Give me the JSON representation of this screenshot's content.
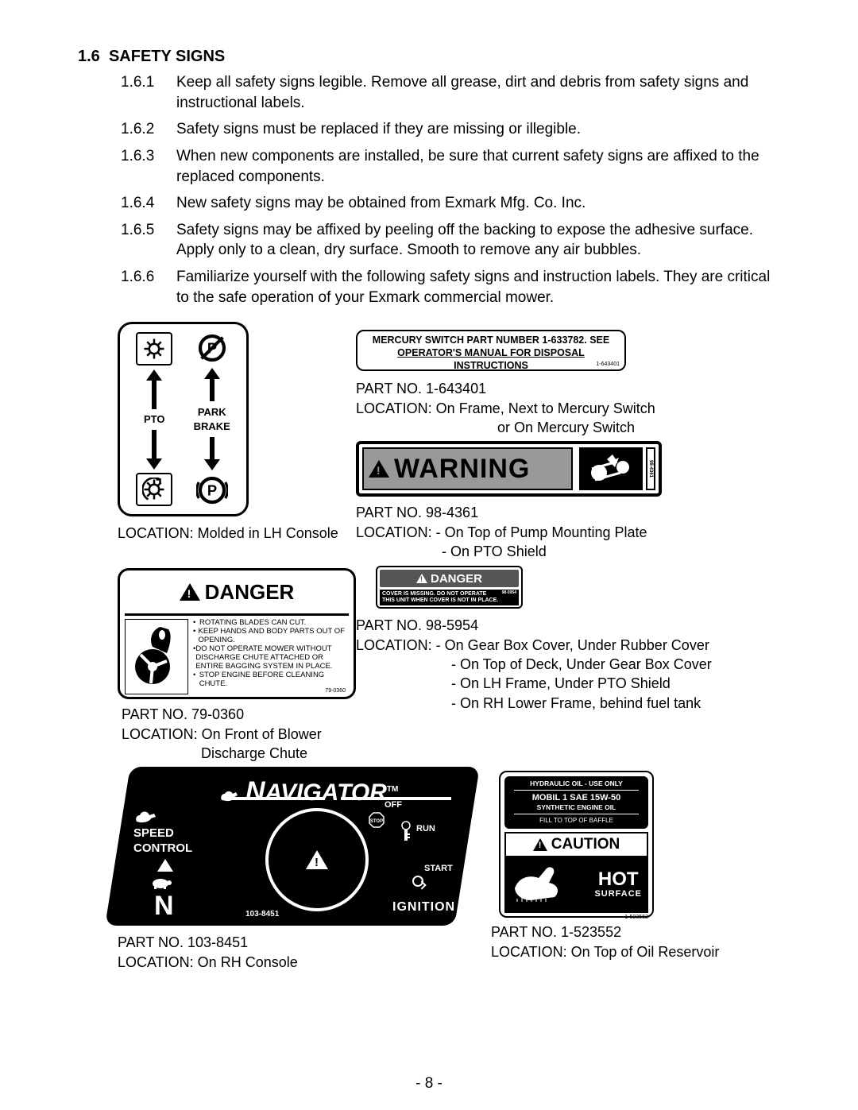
{
  "section": {
    "number": "1.6",
    "title": "SAFETY SIGNS"
  },
  "items": [
    {
      "num": "1.6.1",
      "text": "Keep all safety signs legible.  Remove all grease, dirt and debris from safety signs and instructional labels."
    },
    {
      "num": "1.6.2",
      "text": "Safety signs must be replaced if they are missing or illegible."
    },
    {
      "num": "1.6.3",
      "text": "When new components are installed, be sure that current safety signs are affixed to the replaced components."
    },
    {
      "num": "1.6.4",
      "text": "New safety signs may be obtained from Exmark Mfg. Co. Inc."
    },
    {
      "num": "1.6.5",
      "text": "Safety signs may be affixed by peeling off the backing to expose the adhesive surface.  Apply only to a clean, dry surface.  Smooth to remove any air bubbles."
    },
    {
      "num": "1.6.6",
      "text": "Familiarize yourself with the following safety signs and instruction labels.  They are critical to the safe operation of your Exmark commercial mower."
    }
  ],
  "pto": {
    "pto": "PTO",
    "park": "PARK",
    "brake": "BRAKE",
    "caption": "LOCATION: Molded in LH Console"
  },
  "mercury": {
    "line1": "MERCURY SWITCH  PART NUMBER 1-633782.  SEE",
    "line2": "OPERATOR'S MANUAL FOR DISPOSAL INSTRUCTIONS",
    "small": "1-643401",
    "cap1": "PART NO. 1-643401",
    "cap2": "LOCATION:  On Frame, Next to Mercury Switch",
    "cap3": "or On Mercury Switch"
  },
  "warning": {
    "text": "WARNING",
    "small": "98-4361",
    "cap1": "PART NO. 98-4361",
    "cap2": "LOCATION:  - On Top of Pump Mounting Plate",
    "cap3": "- On PTO Shield"
  },
  "danger": {
    "head": "DANGER",
    "b1": "ROTATING BLADES CAN CUT.",
    "b2": "KEEP HANDS AND BODY PARTS OUT OF OPENING.",
    "b3": "DO NOT OPERATE MOWER WITHOUT DISCHARGE CHUTE ATTACHED OR ENTIRE BAGGING SYSTEM IN PLACE.",
    "b4": "STOP ENGINE BEFORE CLEANING CHUTE.",
    "pn": "79-0360",
    "cap1": "PART NO. 79-0360",
    "cap2": "LOCATION:  On Front of Blower",
    "cap3": "Discharge Chute"
  },
  "sdanger": {
    "head": "DANGER",
    "l1": "COVER IS MISSING. DO NOT OPERATE",
    "l2": "THIS UNIT WHEN COVER IS NOT IN PLACE.",
    "pn": "98-5954",
    "cap1": "PART NO. 98-5954",
    "cap2": "LOCATION:  - On Gear Box Cover, Under Rubber Cover",
    "cap3": "- On Top of Deck, Under Gear Box Cover",
    "cap4": "- On LH Frame, Under PTO Shield",
    "cap5": "- On RH Lower Frame, behind fuel tank"
  },
  "nav": {
    "brand": "NAVIGATOR",
    "tm": "TM",
    "speed": "SPEED",
    "control": "CONTROL",
    "n": "N",
    "off": "OFF",
    "stop": "STOP",
    "run": "RUN",
    "start": "START",
    "ignition": "IGNITION",
    "pn": "103-8451",
    "cap1": "PART NO. 103-8451",
    "cap2": "LOCATION: On RH Console"
  },
  "hot": {
    "t1": "HYDRAULIC OIL - USE ONLY",
    "t2": "MOBIL 1 SAE 15W-50",
    "t3": "SYNTHETIC ENGINE OIL",
    "t4": "FILL TO TOP OF BAFFLE",
    "caution": "CAUTION",
    "hot": "HOT",
    "surface": "SURFACE",
    "pn": "1-523552",
    "cap1": "PART NO. 1-523552",
    "cap2": "LOCATION: On Top of Oil Reservoir"
  },
  "page": "- 8 -"
}
